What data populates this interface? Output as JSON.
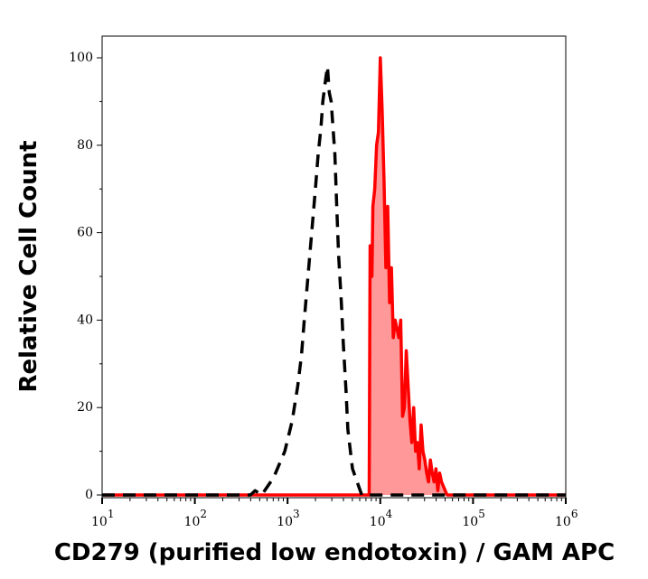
{
  "chart_data": {
    "type": "area",
    "title": "",
    "xlabel": "CD279 (purified low endotoxin) / GAM APC",
    "ylabel": "Relative Cell Count",
    "x_scale": "log",
    "xlim": [
      10,
      1000000
    ],
    "ylim": [
      0,
      105
    ],
    "x_ticks": [
      {
        "base": "10",
        "exp": "1"
      },
      {
        "base": "10",
        "exp": "2"
      },
      {
        "base": "10",
        "exp": "3"
      },
      {
        "base": "10",
        "exp": "4"
      },
      {
        "base": "10",
        "exp": "5"
      },
      {
        "base": "10",
        "exp": "6"
      }
    ],
    "y_ticks": [
      "0",
      "20",
      "40",
      "60",
      "80",
      "100"
    ],
    "grid": false,
    "series": [
      {
        "style": "dashed",
        "color": "#000000",
        "fill": "none",
        "log10_x": [
          1.0,
          2.6,
          2.65,
          2.72,
          2.85,
          2.97,
          3.05,
          3.11,
          3.15,
          3.18,
          3.22,
          3.26,
          3.3,
          3.33,
          3.36,
          3.38,
          3.41,
          3.43,
          3.45,
          3.47,
          3.49,
          3.51,
          3.53,
          3.55,
          3.58,
          3.6,
          3.63,
          3.65,
          3.7,
          3.75,
          3.8,
          3.9,
          6.1
        ],
        "y": [
          0,
          0,
          1,
          0,
          4,
          10,
          17,
          25,
          32,
          40,
          50,
          60,
          70,
          78,
          84,
          90,
          95,
          98,
          92,
          90,
          84,
          78,
          66,
          55,
          44,
          35,
          24,
          15,
          6,
          3,
          0,
          0,
          0
        ]
      },
      {
        "style": "solid",
        "color": "#ff0000",
        "fill": "#ff9999",
        "log10_x": [
          1.0,
          3.88,
          3.89,
          3.91,
          3.92,
          3.94,
          3.96,
          3.98,
          4.0,
          4.02,
          4.04,
          4.06,
          4.08,
          4.1,
          4.12,
          4.14,
          4.16,
          4.18,
          4.2,
          4.22,
          4.24,
          4.26,
          4.28,
          4.3,
          4.32,
          4.34,
          4.36,
          4.38,
          4.4,
          4.42,
          4.44,
          4.46,
          4.48,
          4.5,
          4.52,
          4.54,
          4.56,
          4.58,
          4.6,
          4.62,
          4.64,
          4.66,
          4.68,
          4.7,
          4.72,
          4.74,
          4.76,
          4.78,
          4.8,
          6.1
        ],
        "y": [
          0,
          0,
          57,
          50,
          66,
          70,
          80,
          83,
          100,
          88,
          72,
          52,
          66,
          44,
          52,
          36,
          40,
          38,
          36,
          40,
          18,
          20,
          33,
          25,
          17,
          12,
          20,
          10,
          12,
          6,
          16,
          10,
          8,
          5,
          3,
          8,
          5,
          3,
          6,
          1,
          5,
          3,
          2,
          1,
          0,
          0,
          0,
          0,
          0,
          0
        ]
      }
    ]
  }
}
